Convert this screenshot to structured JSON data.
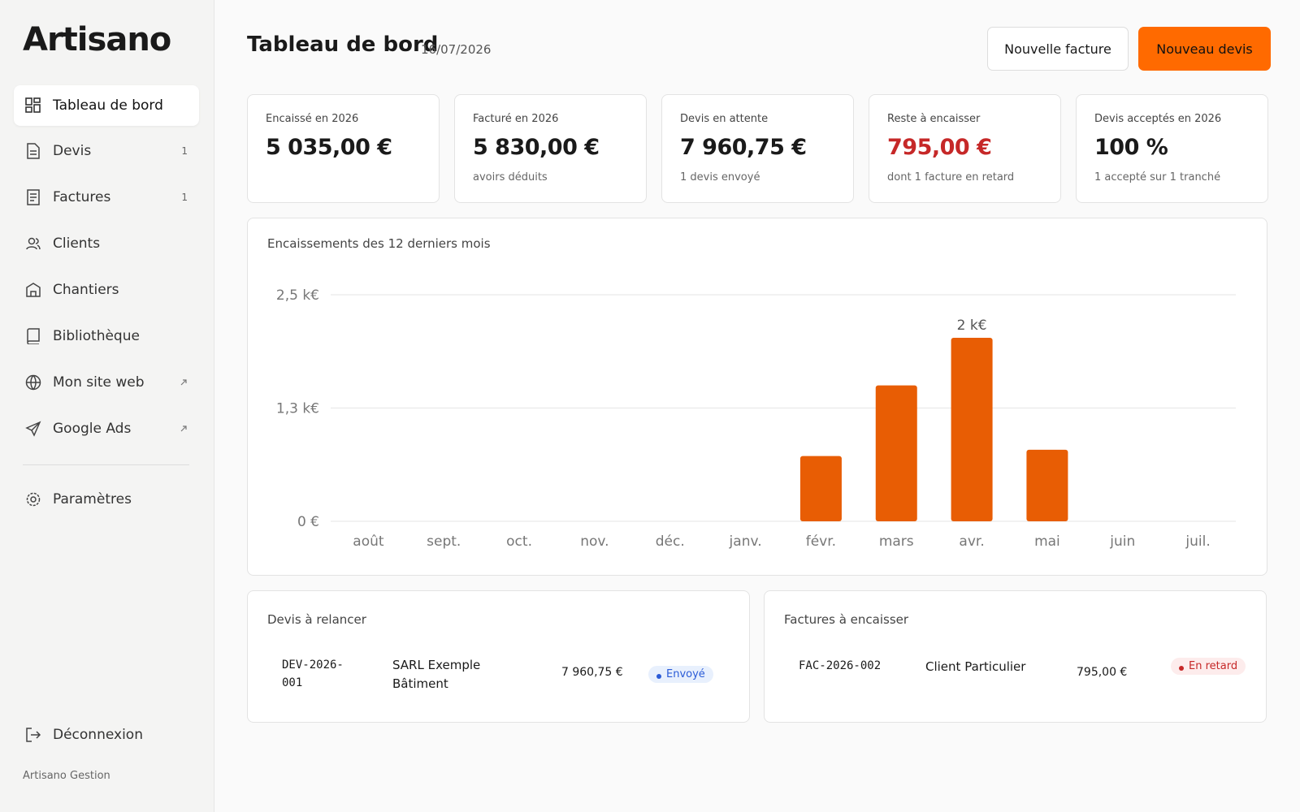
{
  "sidebar": {
    "brand": "Artisano",
    "nav": [
      {
        "label": "Tableau de bord"
      },
      {
        "label": "Devis",
        "badge": 1
      },
      {
        "label": "Factures",
        "badge": 1
      },
      {
        "label": "Clients"
      },
      {
        "label": "Chantiers"
      },
      {
        "label": "Bibliothèque"
      },
      {
        "label": "Mon site web"
      },
      {
        "label": "Google Ads"
      }
    ],
    "settings": "Paramètres",
    "logout": "Déconnexion",
    "footer": "Artisano Gestion"
  },
  "header": {
    "title": "Tableau de bord",
    "date": "16/07/2026",
    "buttons": [
      "Nouvelle facture",
      "Nouveau devis"
    ]
  },
  "kpis": [
    {
      "label": "Encaissé en 2026",
      "value": "5 035,00 €"
    },
    {
      "label": "Facturé en 2026",
      "value": "5 830,00 €",
      "note": "avoirs déduits"
    },
    {
      "label": "Devis en attente",
      "value": "7 960,75 €",
      "note": "1 devis envoyé"
    },
    {
      "label": "Reste à encaisser",
      "value": "795,00 €",
      "note": "dont 1 facture en retard"
    },
    {
      "label": "Devis acceptés en 2026",
      "value": "100 %",
      "note": "1 accepté sur 1 tranché"
    }
  ],
  "chart_data": {
    "type": "bar",
    "title": "Encaissements des 12 derniers mois",
    "categories": [
      "août",
      "sept.",
      "oct.",
      "nov.",
      "déc.",
      "janv.",
      "févr.",
      "mars",
      "avr.",
      "mai",
      "juin",
      "juil."
    ],
    "values": [
      0,
      0,
      0,
      0,
      0,
      0,
      720,
      1500,
      2025,
      790,
      0,
      0
    ],
    "value_labels": [
      null,
      null,
      null,
      null,
      null,
      null,
      null,
      null,
      "2 k€",
      null,
      null,
      null
    ],
    "color": "#e85d04",
    "ylim": [
      0,
      2500
    ],
    "yticks": [
      {
        "value": 0,
        "label": "0 €"
      },
      {
        "value": 1250,
        "label": "1,3 k€"
      },
      {
        "value": 2500,
        "label": "2,5 k€"
      }
    ],
    "grid": true
  },
  "lists": [
    {
      "title": "Devis à relancer",
      "rows": [
        [
          "DEV-2026-001",
          "SARL Exemple Bâtiment",
          "7 960,75 €",
          "Envoyé"
        ]
      ]
    },
    {
      "title": "Factures à encaisser",
      "rows": [
        [
          "FAC-2026-002",
          "Client Particulier",
          "795,00 €",
          "En retard"
        ]
      ]
    }
  ]
}
